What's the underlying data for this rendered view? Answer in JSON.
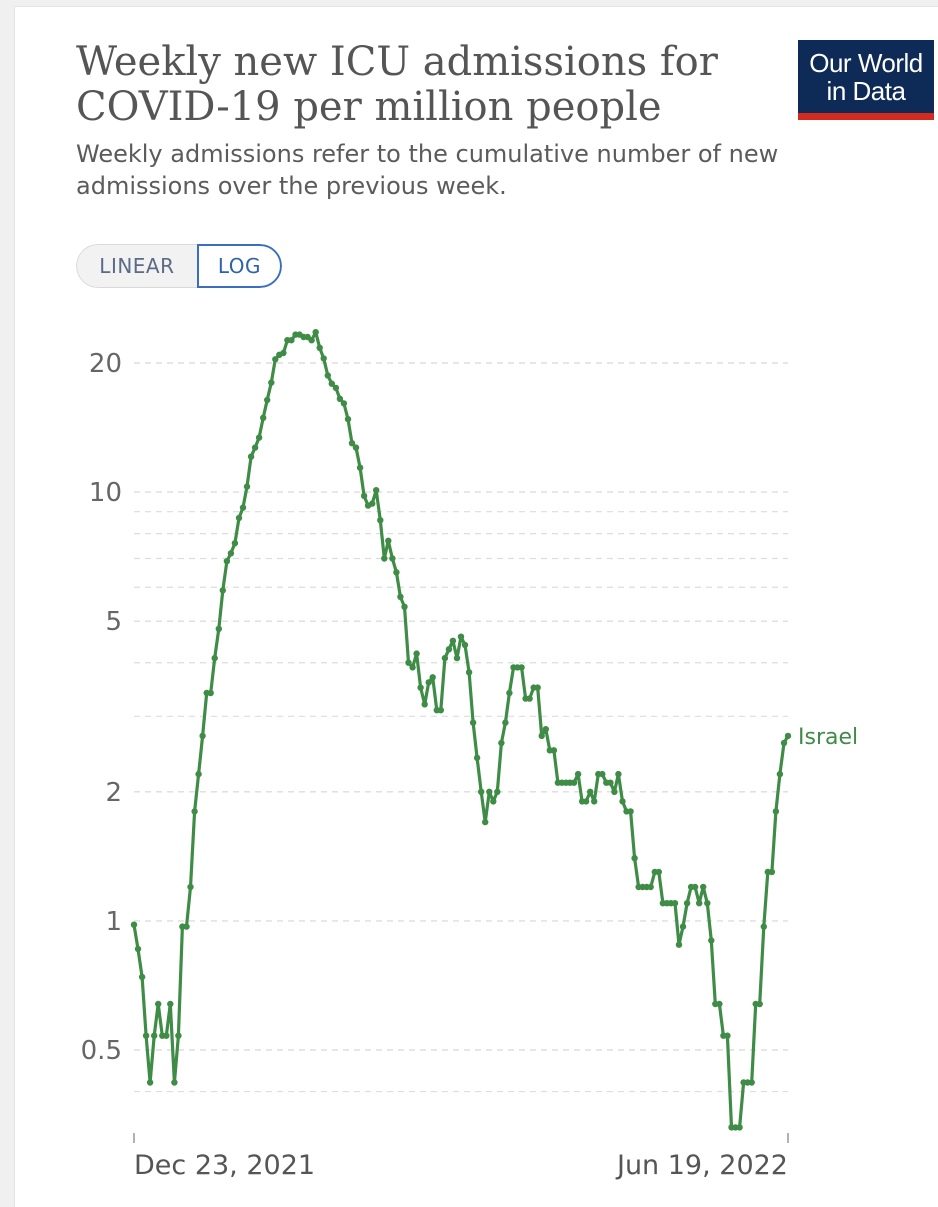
{
  "header": {
    "title": "Weekly new ICU admissions for COVID-19 per million people",
    "subtitle": "Weekly admissions refer to the cumulative number of new admissions over the previous week.",
    "logo_line1": "Our World",
    "logo_line2": "in Data"
  },
  "scale_toggle": {
    "linear_label": "LINEAR",
    "log_label": "LOG",
    "selected": "LOG"
  },
  "colors": {
    "line": "#3f8c47",
    "grid": "#dddddd",
    "logo_bg": "#0e2a56",
    "logo_accent": "#d42b21",
    "toggle_active": "#3a6fc0"
  },
  "chart_data": {
    "type": "line",
    "title": "Weekly new ICU admissions for COVID-19 per million people",
    "yscale": "log",
    "ylim": [
      0.35,
      25
    ],
    "yticks": [
      {
        "value": 0.5,
        "label": "0.5"
      },
      {
        "value": 1,
        "label": "1"
      },
      {
        "value": 2,
        "label": "2"
      },
      {
        "value": 5,
        "label": "5"
      },
      {
        "value": 10,
        "label": "10"
      },
      {
        "value": 20,
        "label": "20"
      }
    ],
    "minor_gridlines": [
      0.3,
      0.4,
      3,
      4,
      6,
      7,
      8,
      9
    ],
    "x_start": "2021-12-23",
    "x_end": "2022-06-19",
    "xticks": [
      {
        "date": "2021-12-23",
        "label": "Dec 23, 2021"
      },
      {
        "date": "2022-06-19",
        "label": "Jun 19, 2022"
      }
    ],
    "grid": true,
    "series": [
      {
        "name": "Israel",
        "values": [
          0.98,
          0.86,
          0.74,
          0.54,
          0.42,
          0.54,
          0.64,
          0.54,
          0.54,
          0.64,
          0.42,
          0.54,
          0.97,
          0.97,
          1.2,
          1.8,
          2.2,
          2.7,
          3.4,
          3.4,
          4.1,
          4.8,
          5.9,
          6.9,
          7.2,
          7.6,
          8.7,
          9.2,
          10.3,
          12.1,
          12.7,
          13.4,
          14.9,
          16.4,
          18.0,
          20.4,
          20.9,
          21.1,
          22.6,
          22.6,
          23.3,
          23.3,
          23.0,
          23.0,
          22.6,
          23.6,
          21.7,
          20.5,
          18.7,
          17.9,
          17.5,
          16.5,
          16.1,
          14.8,
          13.0,
          12.7,
          11.4,
          9.8,
          9.3,
          9.4,
          10.1,
          8.6,
          7.0,
          7.7,
          7.0,
          6.5,
          5.7,
          5.4,
          4.0,
          3.9,
          4.2,
          3.5,
          3.2,
          3.6,
          3.7,
          3.1,
          3.1,
          4.1,
          4.3,
          4.5,
          4.1,
          4.6,
          4.4,
          3.8,
          2.9,
          2.4,
          2.0,
          1.7,
          2.0,
          1.9,
          2.0,
          2.6,
          2.9,
          3.4,
          3.9,
          3.9,
          3.9,
          3.3,
          3.3,
          3.5,
          3.5,
          2.7,
          2.8,
          2.5,
          2.5,
          2.1,
          2.1,
          2.1,
          2.1,
          2.1,
          2.2,
          1.9,
          1.9,
          2.0,
          1.9,
          2.2,
          2.2,
          2.1,
          2.1,
          2.0,
          2.2,
          1.9,
          1.8,
          1.8,
          1.4,
          1.2,
          1.2,
          1.2,
          1.2,
          1.3,
          1.3,
          1.1,
          1.1,
          1.1,
          1.1,
          0.88,
          0.97,
          1.1,
          1.2,
          1.2,
          1.1,
          1.2,
          1.1,
          0.9,
          0.64,
          0.64,
          0.54,
          0.54,
          0.33,
          0.33,
          0.33,
          0.42,
          0.42,
          0.42,
          0.64,
          0.64,
          0.97,
          1.3,
          1.3,
          1.8,
          2.2,
          2.6,
          2.7
        ]
      }
    ]
  }
}
